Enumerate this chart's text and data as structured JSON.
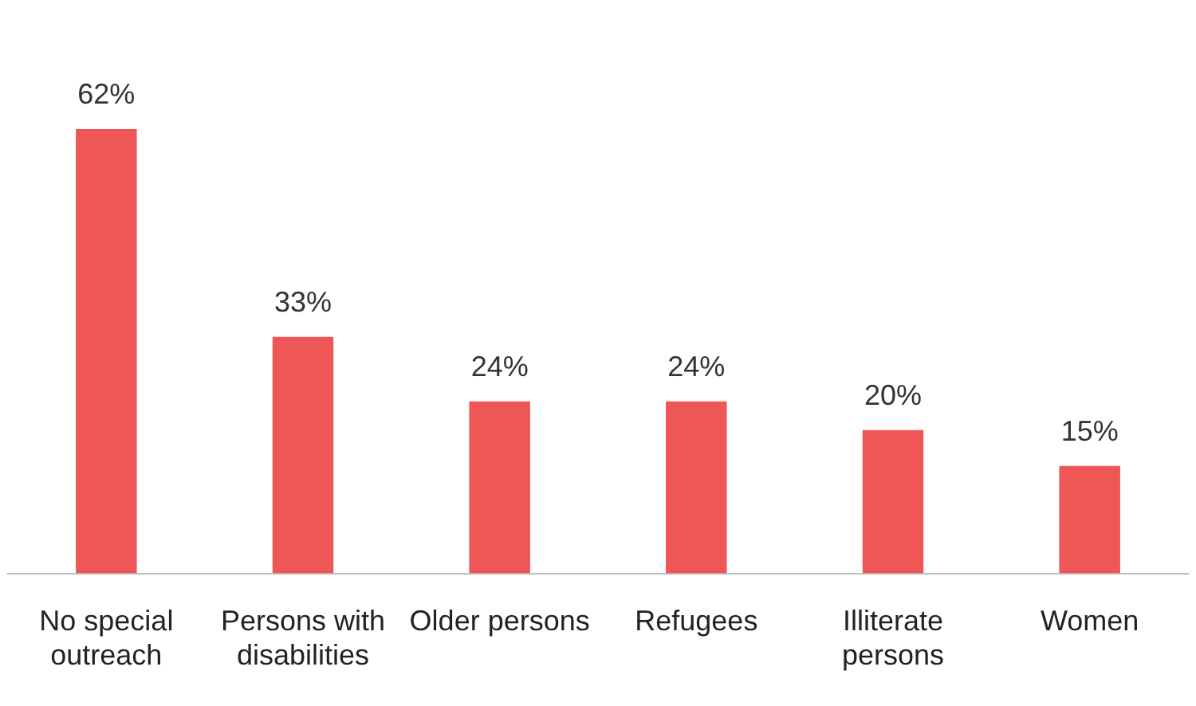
{
  "chart_data": {
    "type": "bar",
    "categories": [
      "No special outreach",
      "Persons with disabilities",
      "Older persons",
      "Refugees",
      "Illiterate persons",
      "Women"
    ],
    "values": [
      62,
      33,
      24,
      24,
      20,
      15
    ],
    "value_labels": [
      "62%",
      "33%",
      "24%",
      "24%",
      "20%",
      "15%"
    ],
    "color": "#ef5656",
    "grid": false,
    "legend": false
  }
}
